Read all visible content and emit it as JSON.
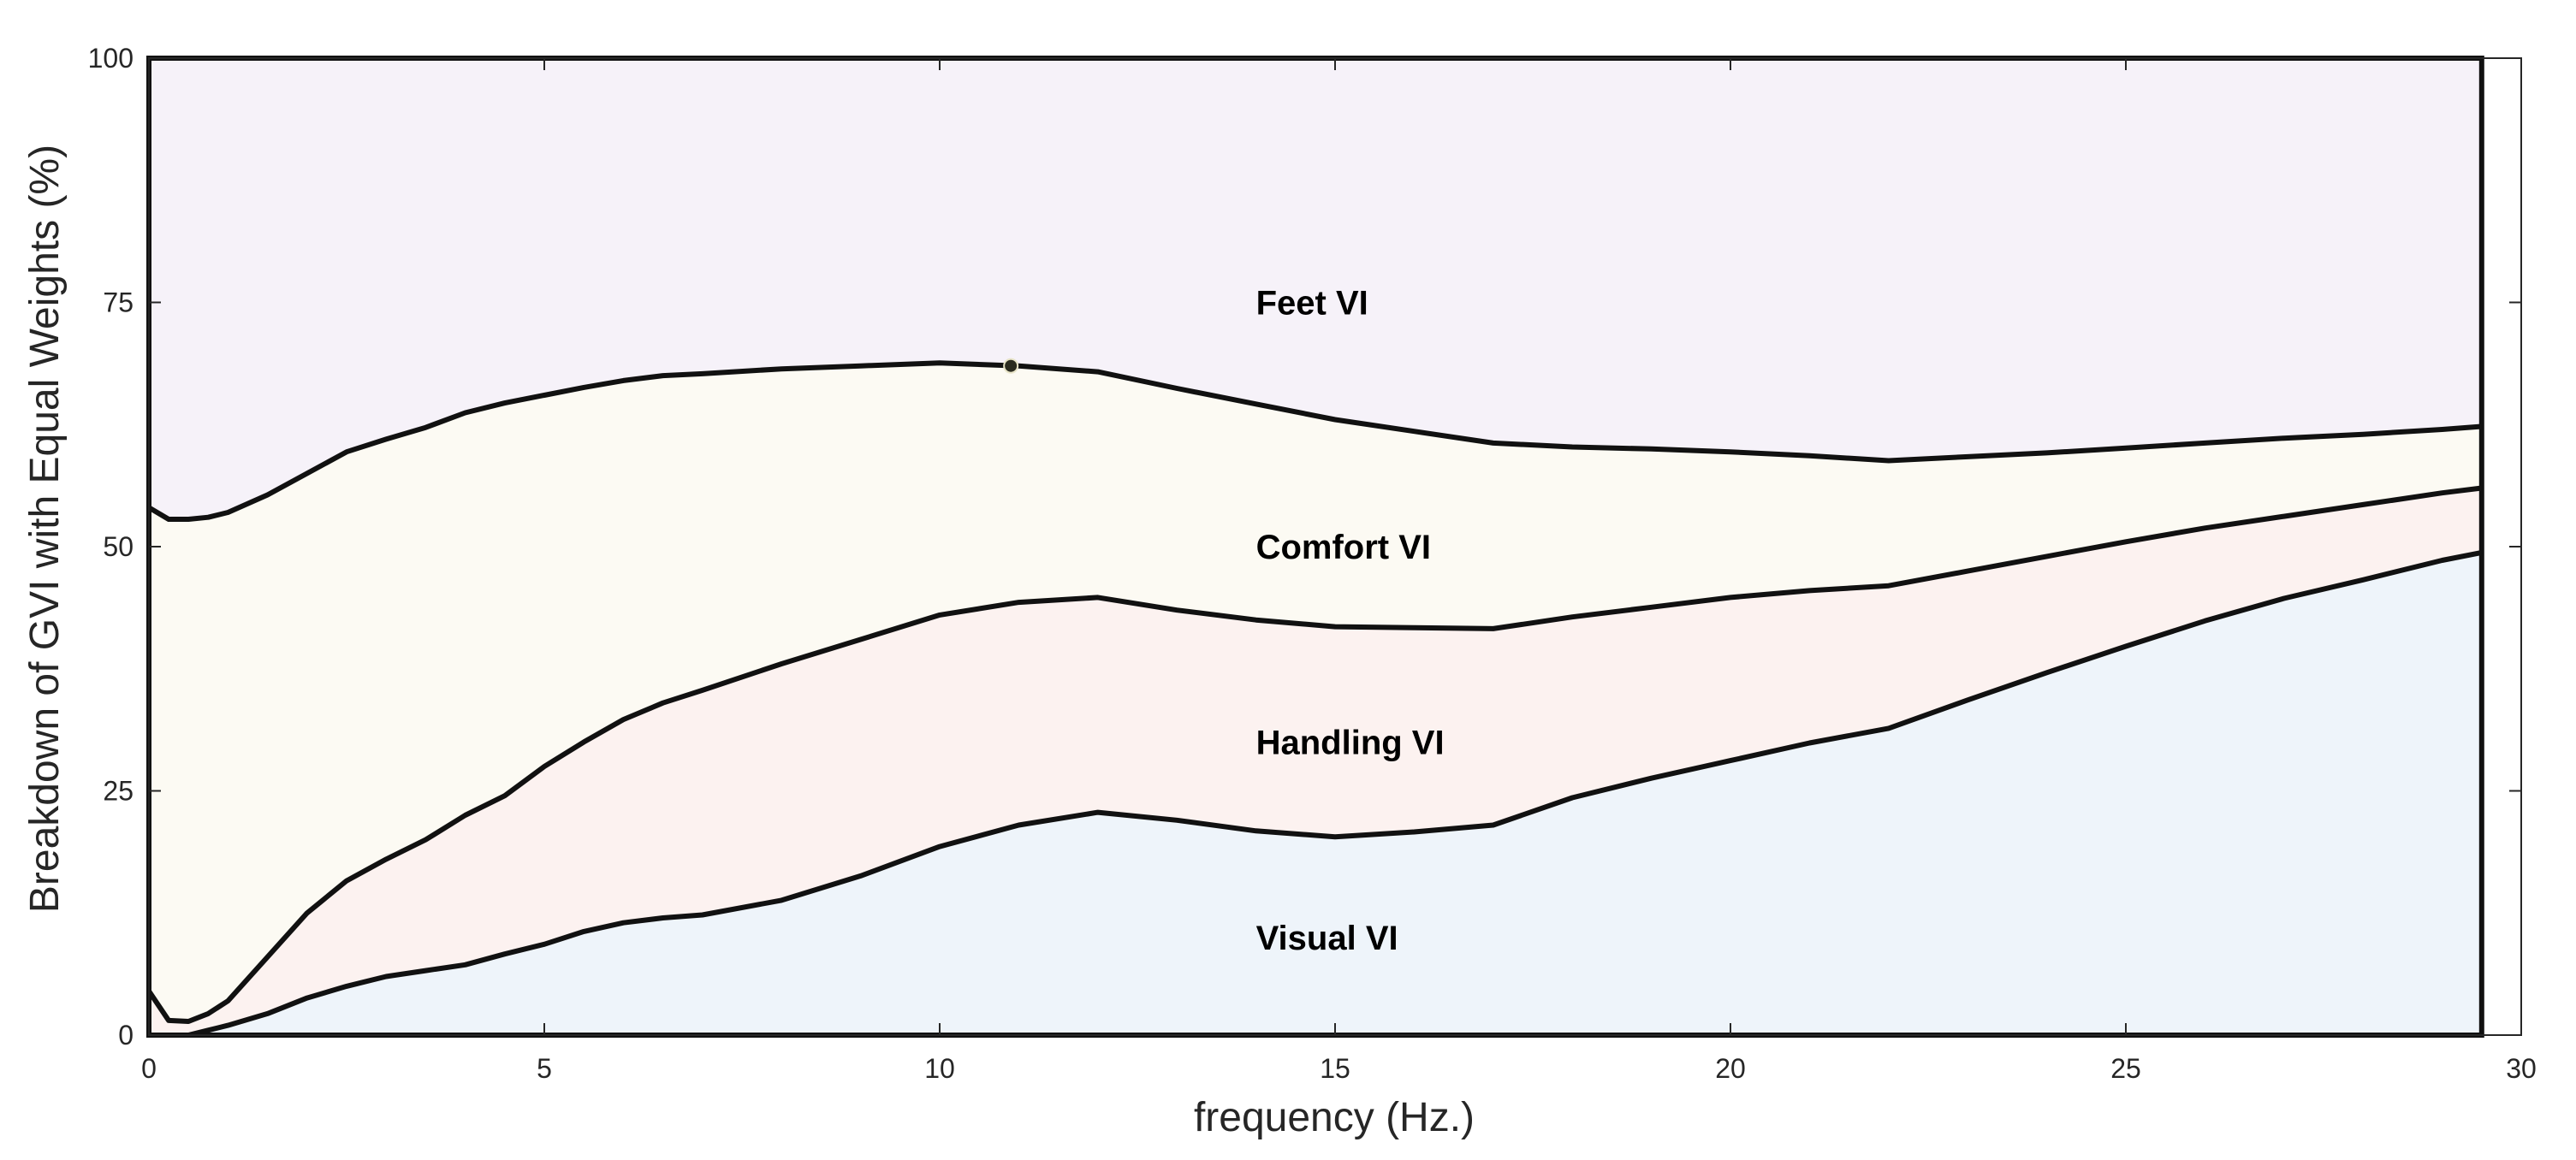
{
  "chart_data": {
    "type": "area",
    "stacked": true,
    "title": "",
    "xlabel": "frequency (Hz.)",
    "ylabel": "Breakdown of GVI with Equal Weights (%)",
    "xlim": [
      0,
      30
    ],
    "ylim": [
      0,
      100
    ],
    "xticks": [
      0,
      5,
      10,
      15,
      20,
      25,
      30
    ],
    "yticks": [
      0,
      25,
      50,
      75,
      100
    ],
    "grid": false,
    "colors": {
      "visual": "#eef4fa",
      "handling": "#fcf2f0",
      "comfort": "#fcfaf3",
      "feet": "#f6f2f9",
      "line": "#111111",
      "marker": "#2b2b20"
    },
    "x": [
      0,
      0.25,
      0.5,
      0.75,
      1,
      1.5,
      2,
      2.5,
      3,
      3.5,
      4,
      4.5,
      5,
      5.5,
      6,
      6.5,
      7,
      8,
      9,
      10,
      11,
      12,
      13,
      14,
      15,
      16,
      17,
      18,
      19,
      20,
      21,
      22,
      23,
      24,
      25,
      26,
      27,
      28,
      29,
      29.5
    ],
    "series": [
      {
        "name": "Visual VI",
        "boundary": [
          0,
          0,
          0,
          0.5,
          1,
          2.2,
          3.8,
          5,
          6,
          6.6,
          7.2,
          8.3,
          9.3,
          10.6,
          11.5,
          12,
          12.3,
          13.8,
          16.3,
          19.3,
          21.5,
          22.8,
          22,
          20.9,
          20.3,
          20.8,
          21.5,
          24.3,
          26.3,
          28.1,
          29.9,
          31.4,
          34.3,
          37.1,
          39.8,
          42.4,
          44.7,
          46.6,
          48.6,
          49.4
        ]
      },
      {
        "name": "Handling VI",
        "boundary": [
          4.5,
          1.5,
          1.4,
          2.2,
          3.5,
          8,
          12.5,
          15.8,
          18,
          20,
          22.5,
          24.5,
          27.5,
          30,
          32.3,
          34,
          35.3,
          38,
          40.5,
          43,
          44.3,
          44.8,
          43.5,
          42.5,
          41.8,
          41.7,
          41.6,
          42.8,
          43.8,
          44.8,
          45.5,
          46,
          47.5,
          49,
          50.5,
          51.9,
          53.1,
          54.3,
          55.5,
          56
        ]
      },
      {
        "name": "Comfort VI",
        "boundary": [
          54,
          52.8,
          52.8,
          53,
          53.5,
          55.3,
          57.5,
          59.7,
          61,
          62.2,
          63.7,
          64.7,
          65.5,
          66.3,
          67,
          67.5,
          67.7,
          68.2,
          68.5,
          68.8,
          68.5,
          67.9,
          66.2,
          64.6,
          63,
          61.8,
          60.6,
          60.2,
          60,
          59.7,
          59.3,
          58.8,
          59.2,
          59.6,
          60.1,
          60.6,
          61.1,
          61.5,
          62,
          62.3
        ]
      },
      {
        "name": "Feet VI",
        "boundary": [
          100,
          100,
          100,
          100,
          100,
          100,
          100,
          100,
          100,
          100,
          100,
          100,
          100,
          100,
          100,
          100,
          100,
          100,
          100,
          100,
          100,
          100,
          100,
          100,
          100,
          100,
          100,
          100,
          100,
          100,
          100,
          100,
          100,
          100,
          100,
          100,
          100,
          100,
          100,
          100
        ]
      }
    ],
    "annotations": [
      {
        "text": "Feet VI",
        "x": 14,
        "y": 75
      },
      {
        "text": "Comfort VI",
        "x": 14,
        "y": 50
      },
      {
        "text": "Handling VI",
        "x": 14,
        "y": 30
      },
      {
        "text": "Visual VI",
        "x": 14,
        "y": 10
      }
    ],
    "marker": {
      "x": 10.9,
      "y": 68.5
    }
  }
}
